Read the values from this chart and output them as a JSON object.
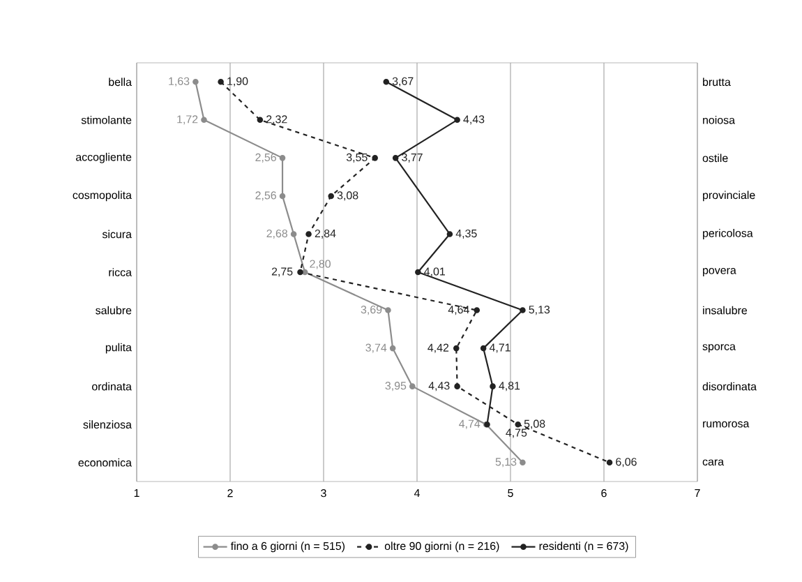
{
  "chart_data": {
    "type": "line",
    "orientation": "horizontal",
    "categories": [
      "bella",
      "stimolante",
      "accogliente",
      "cosmopolita",
      "sicura",
      "ricca",
      "salubre",
      "pulita",
      "ordinata",
      "silenziosa",
      "economica"
    ],
    "y2_categories": [
      "brutta",
      "noiosa",
      "ostile",
      "provinciale",
      "pericolosa",
      "povera",
      "insalubre",
      "sporca",
      "disordinata",
      "rumorosa",
      "cara"
    ],
    "xlim": [
      1,
      7
    ],
    "xticks": [
      1,
      2,
      3,
      4,
      5,
      6,
      7
    ],
    "grid": "x",
    "legend": "bottom",
    "marker": "circle",
    "series": [
      {
        "name": "fino a 6 giorni (n = 515)",
        "color": "#8c8c8c",
        "line_style": "solid",
        "values": [
          1.63,
          1.72,
          2.56,
          2.56,
          2.68,
          2.8,
          3.69,
          3.74,
          3.95,
          4.74,
          5.13
        ],
        "value_labels": [
          "1,63",
          "1,72",
          "2,56",
          "2,56",
          "2,68",
          "2,80",
          "3,69",
          "3,74",
          "3,95",
          "4,74",
          "5,13"
        ]
      },
      {
        "name": "oltre 90 giorni (n = 216)",
        "color": "#222222",
        "line_style": "dashed",
        "values": [
          1.9,
          2.32,
          3.55,
          3.08,
          2.84,
          2.75,
          4.64,
          4.42,
          4.43,
          5.08,
          6.06
        ],
        "value_labels": [
          "1,90",
          "2,32",
          "3,55",
          "3,08",
          "2,84",
          "2,75",
          "4,64",
          "4,42",
          "4,43",
          "5,08",
          "6,06"
        ]
      },
      {
        "name": "residenti (n = 673)",
        "color": "#222222",
        "line_style": "solid",
        "values": [
          3.67,
          4.43,
          3.77,
          null,
          4.35,
          4.01,
          5.13,
          4.71,
          4.81,
          4.75,
          null
        ],
        "value_labels": [
          "3,67",
          "4,43",
          "3,77",
          null,
          "4,35",
          "4,01",
          "5,13",
          "4,71",
          "4,81",
          "4,75",
          null
        ]
      }
    ]
  }
}
